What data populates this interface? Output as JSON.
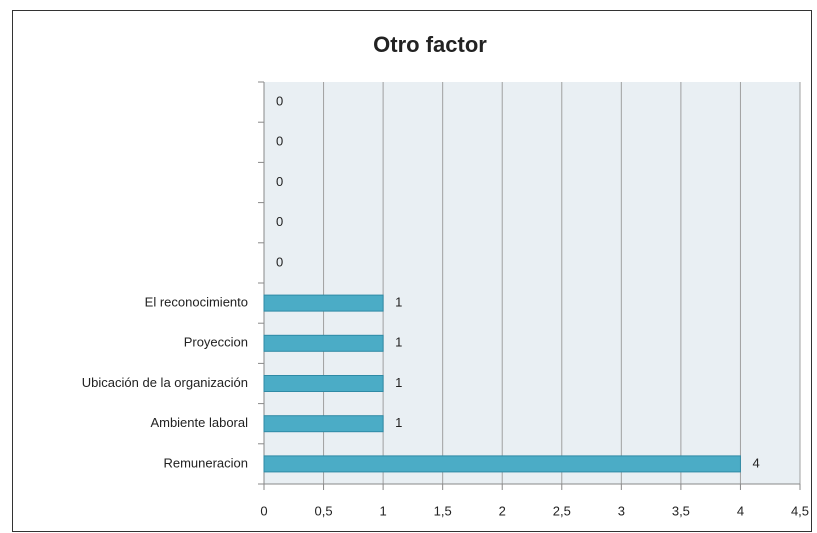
{
  "chart_data": {
    "type": "bar",
    "orientation": "horizontal",
    "title": "Otro factor",
    "categories": [
      null,
      null,
      null,
      null,
      null,
      "El reconocimiento",
      "Proyeccion",
      "Ubicación de la organización",
      "Ambiente laboral",
      "Remuneracion"
    ],
    "values": [
      0,
      0,
      0,
      0,
      0,
      1,
      1,
      1,
      1,
      4
    ],
    "color": "#4bacc6",
    "xlim": [
      0,
      4.5
    ],
    "xticks": [
      0,
      {
        "value": 0.5,
        "label": "0,5"
      },
      1,
      {
        "value": 1.5,
        "label": "1,5"
      },
      2,
      {
        "value": 2.5,
        "label": "2,5"
      },
      3,
      {
        "value": 3.5,
        "label": "3,5"
      },
      4,
      {
        "value": 4.5,
        "label": "4,5"
      }
    ],
    "grid": true
  }
}
